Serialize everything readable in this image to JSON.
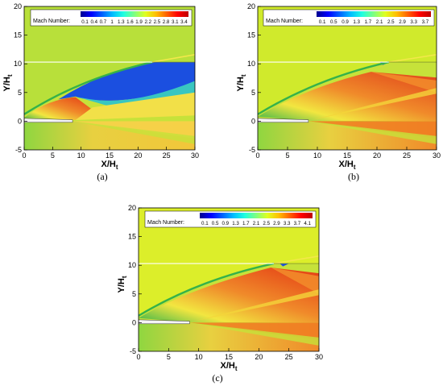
{
  "chart_data": [
    {
      "type": "heatmap",
      "caption": "(a)",
      "xlabel": "X/H",
      "xlabel_sub": "t",
      "ylabel": "Y/H",
      "ylabel_sub": "t",
      "xlim": [
        0,
        30
      ],
      "ylim": [
        -5,
        20
      ],
      "x_ticks": [
        0,
        5,
        10,
        15,
        20,
        25,
        30
      ],
      "y_ticks": [
        -5,
        0,
        5,
        10,
        15,
        20
      ],
      "legend": {
        "title": "Mach Number:",
        "levels": [
          "0.1",
          "0.4",
          "0.7",
          "1",
          "1.3",
          "1.6",
          "1.9",
          "2.2",
          "2.5",
          "2.8",
          "3.1",
          "3.4"
        ]
      },
      "colors": {
        "freestream": "#b8e03a",
        "shear": "#35b24a",
        "shock_high": "#e43a14",
        "low_speed": "#1b4fe0"
      }
    },
    {
      "type": "heatmap",
      "caption": "(b)",
      "xlabel": "X/H",
      "xlabel_sub": "t",
      "ylabel": "Y/H",
      "ylabel_sub": "t",
      "xlim": [
        0,
        30
      ],
      "ylim": [
        -5,
        20
      ],
      "x_ticks": [
        0,
        5,
        10,
        15,
        20,
        25,
        30
      ],
      "y_ticks": [
        -5,
        0,
        5,
        10,
        15,
        20
      ],
      "legend": {
        "title": "Mach Number:",
        "levels": [
          "0.1",
          "0.5",
          "0.9",
          "1.3",
          "1.7",
          "2.1",
          "2.5",
          "2.9",
          "3.3",
          "3.7"
        ]
      },
      "colors": {
        "freestream": "#d0ea2c",
        "shear": "#35b24a",
        "shock_high": "#e0401a",
        "low_speed": "#1b4fe0"
      }
    },
    {
      "type": "heatmap",
      "caption": "(c)",
      "xlabel": "X/H",
      "xlabel_sub": "t",
      "ylabel": "Y/H",
      "ylabel_sub": "t",
      "xlim": [
        0,
        30
      ],
      "ylim": [
        -5,
        20
      ],
      "x_ticks": [
        0,
        5,
        10,
        15,
        20,
        25,
        30
      ],
      "y_ticks": [
        -5,
        0,
        5,
        10,
        15,
        20
      ],
      "legend": {
        "title": "Mach Number:",
        "levels": [
          "0.1",
          "0.5",
          "0.9",
          "1.3",
          "1.7",
          "2.1",
          "2.5",
          "2.9",
          "3.3",
          "3.7",
          "4.1"
        ]
      },
      "colors": {
        "freestream": "#dcee2a",
        "shear": "#35b24a",
        "shock_high": "#e43a14",
        "low_speed": "#1b4fe0"
      }
    }
  ]
}
